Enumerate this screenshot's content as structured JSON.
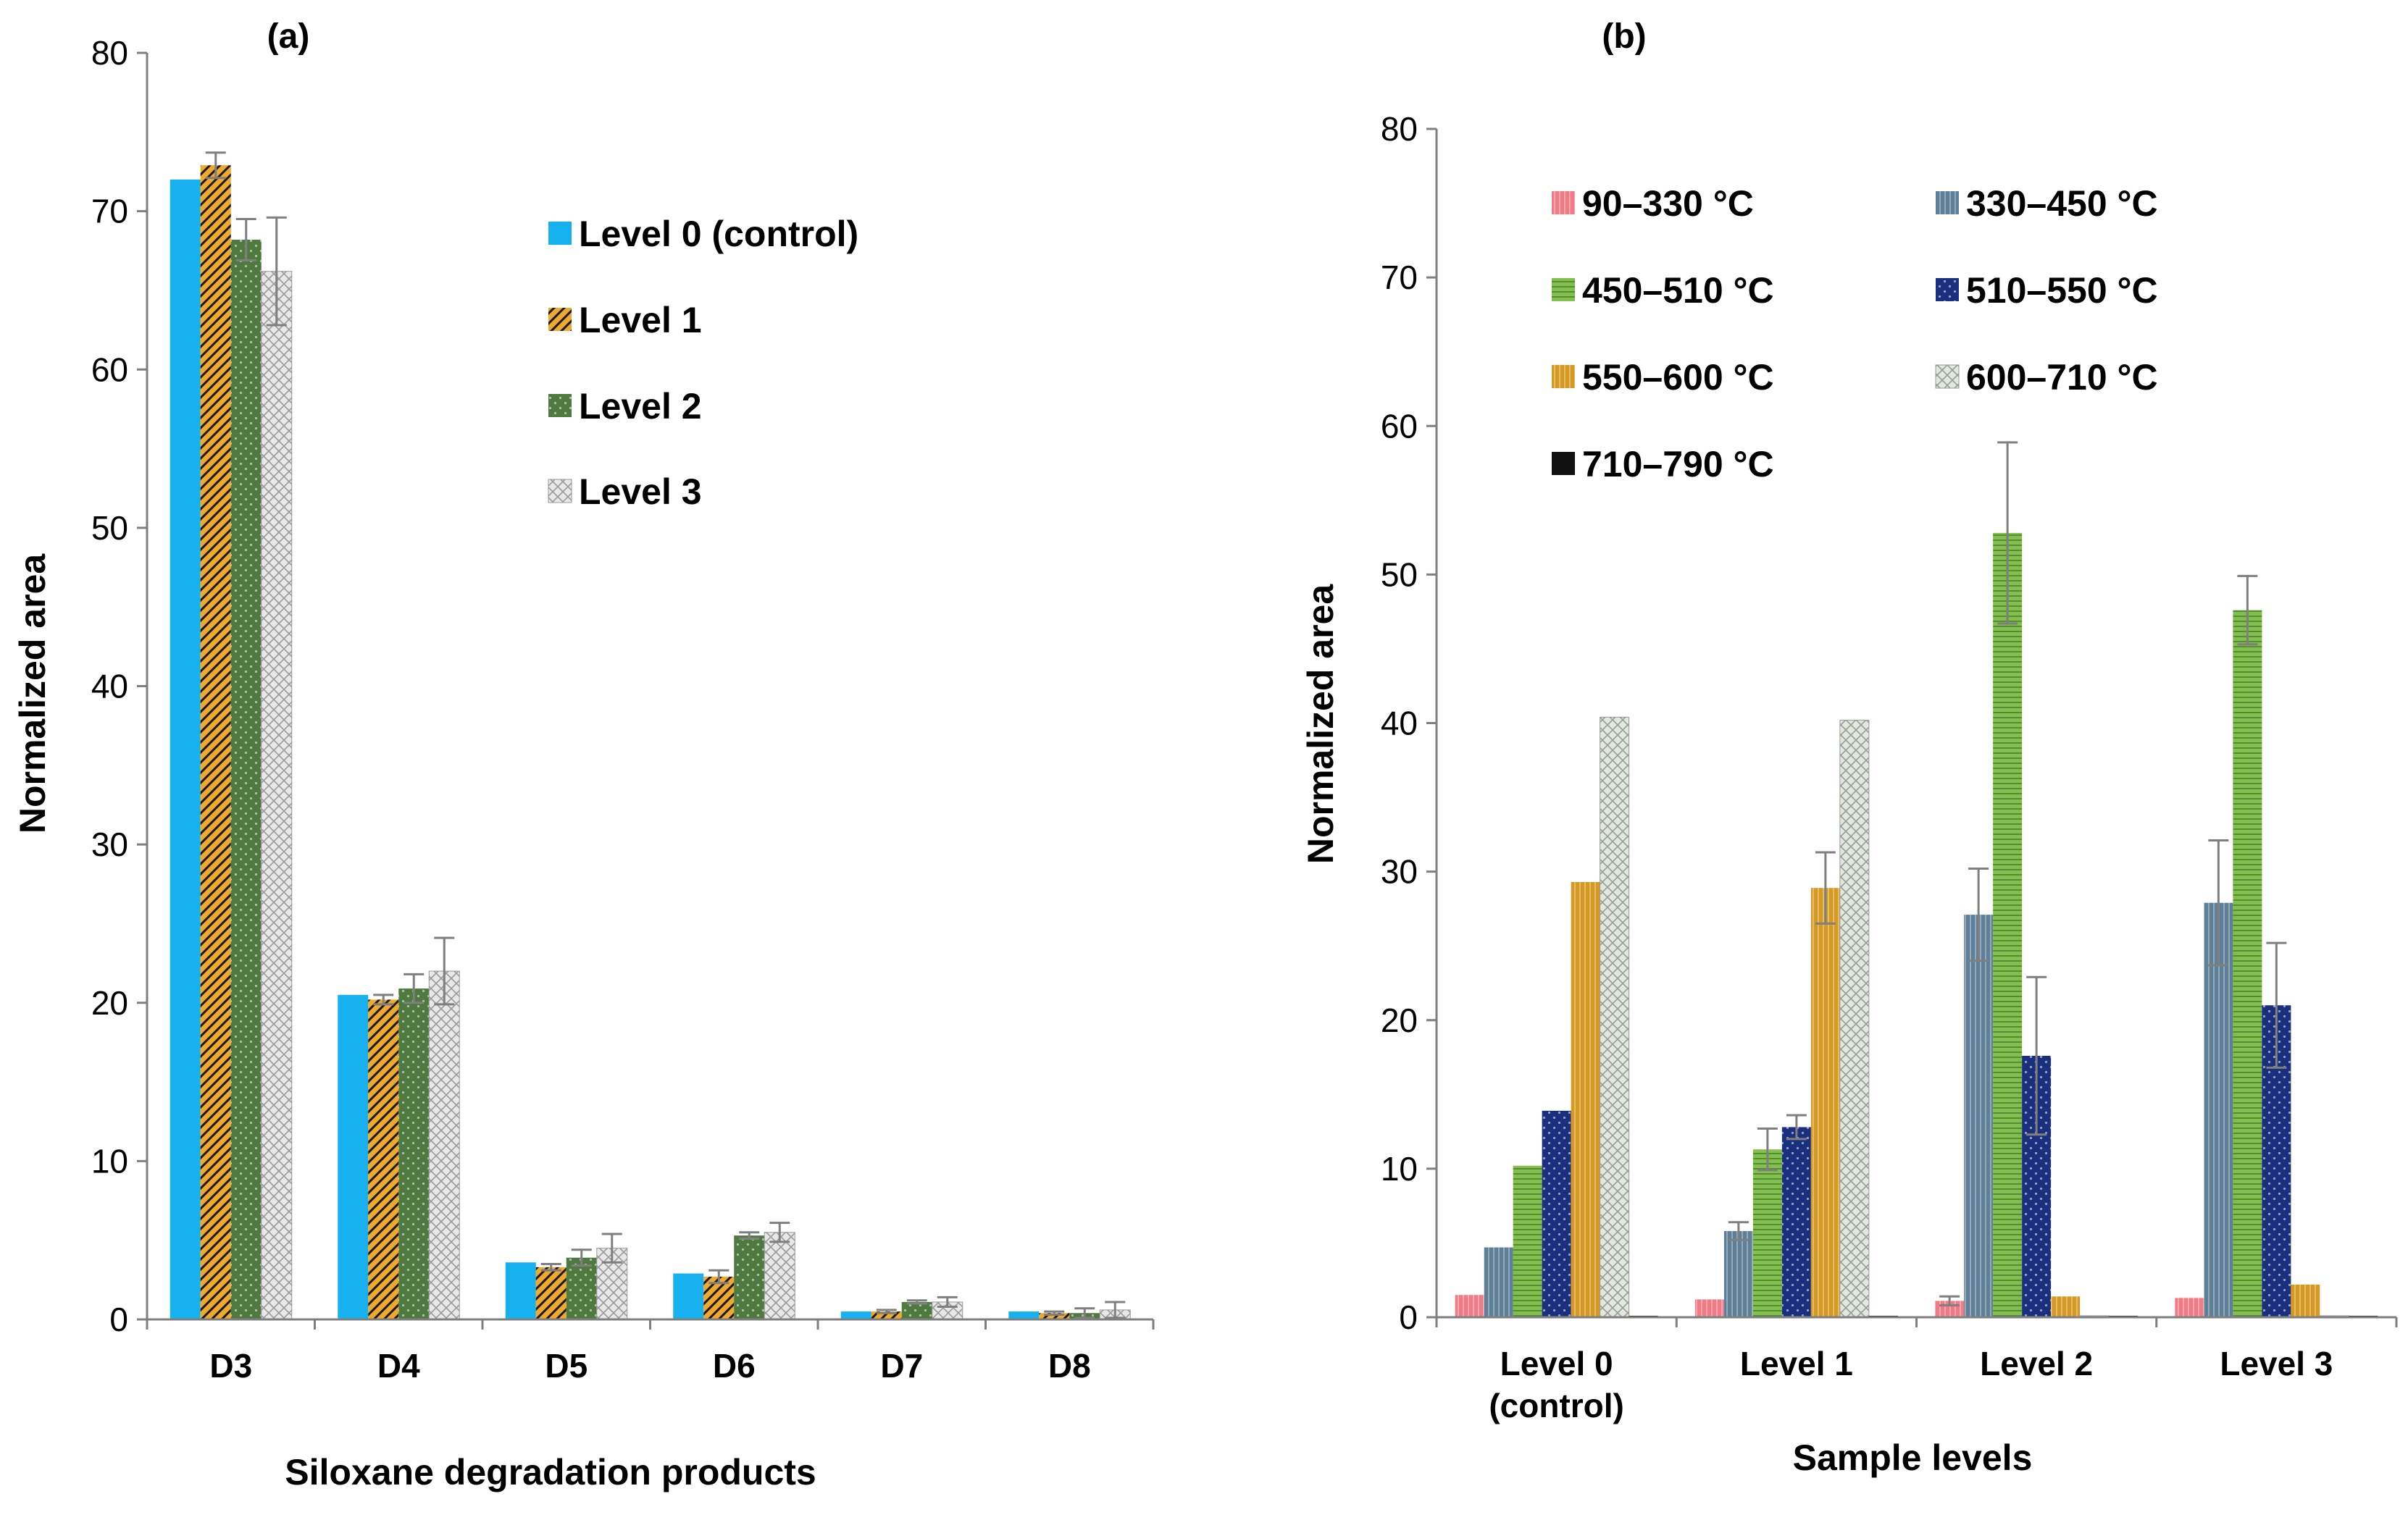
{
  "colors": {
    "level0": "#16b1ee",
    "level1": "#f0a92f",
    "level2": "#4f7a3f",
    "level3": "#e8e8e8",
    "t90_330": "#f07b84",
    "t330_450": "#5d7f98",
    "t450_510": "#82bf4c",
    "t510_550": "#1a2f7d",
    "t550_600": "#d69a22",
    "t600_710": "#dfe9dc",
    "t710_790": "#111111",
    "error": "#7f7f7f",
    "axis": "#7f7f7f"
  },
  "chart_data": [
    {
      "id": "a",
      "type": "bar",
      "panel_label": "(a)",
      "title": "",
      "xlabel": "Siloxane degradation products",
      "ylabel": "Normalized area",
      "ylim": [
        0,
        80
      ],
      "yticks": [
        "0",
        "10",
        "20",
        "30",
        "40",
        "50",
        "60",
        "70",
        "80"
      ],
      "grid": false,
      "legend_position": "top-right",
      "categories": [
        "D3",
        "D4",
        "D5",
        "D6",
        "D7",
        "D8"
      ],
      "series": [
        {
          "name": "Level 0 (control)",
          "color_key": "level0",
          "pattern": "solid",
          "values": [
            72.0,
            20.5,
            3.6,
            2.9,
            0.5,
            0.5
          ],
          "errors": [
            0,
            0,
            0,
            0,
            0,
            0
          ]
        },
        {
          "name": "Level 1",
          "color_key": "level1",
          "pattern": "diag",
          "values": [
            72.9,
            20.2,
            3.3,
            2.7,
            0.5,
            0.4
          ],
          "errors": [
            0.8,
            0.3,
            0.2,
            0.4,
            0.1,
            0.1
          ]
        },
        {
          "name": "Level 2",
          "color_key": "level2",
          "pattern": "dots",
          "values": [
            68.2,
            20.9,
            3.9,
            5.3,
            1.1,
            0.4
          ],
          "errors": [
            1.3,
            0.9,
            0.5,
            0.2,
            0.1,
            0.3
          ]
        },
        {
          "name": "Level 3",
          "color_key": "level3",
          "pattern": "cross",
          "values": [
            66.2,
            22.0,
            4.5,
            5.5,
            1.1,
            0.6
          ],
          "errors": [
            3.4,
            2.1,
            0.9,
            0.6,
            0.3,
            0.5
          ]
        }
      ]
    },
    {
      "id": "b",
      "type": "bar",
      "panel_label": "(b)",
      "title": "",
      "xlabel": "Sample levels",
      "ylabel": "Normalized area",
      "ylim": [
        0,
        80
      ],
      "yticks": [
        "0",
        "10",
        "20",
        "30",
        "40",
        "50",
        "60",
        "70",
        "80"
      ],
      "grid": false,
      "legend_position": "top-left",
      "categories": [
        [
          "Level 0",
          "(control)"
        ],
        [
          "Level 1"
        ],
        [
          "Level 2"
        ],
        [
          "Level 3"
        ]
      ],
      "series": [
        {
          "name": "90–330 °C",
          "color_key": "t90_330",
          "pattern": "lines",
          "values": [
            1.5,
            1.2,
            1.1,
            1.3
          ],
          "errors": [
            0,
            0,
            0.3,
            0
          ]
        },
        {
          "name": "330–450 °C",
          "color_key": "t330_450",
          "pattern": "lines",
          "values": [
            4.7,
            5.8,
            27.1,
            27.9
          ],
          "errors": [
            0,
            0.6,
            3.1,
            4.2
          ]
        },
        {
          "name": "450–510 °C",
          "color_key": "t450_510",
          "pattern": "hlines",
          "values": [
            10.2,
            11.3,
            52.8,
            47.6
          ],
          "errors": [
            0,
            1.4,
            6.1,
            2.3
          ]
        },
        {
          "name": "510–550 °C",
          "color_key": "t510_550",
          "pattern": "dots",
          "values": [
            13.9,
            12.8,
            17.6,
            21.0
          ],
          "errors": [
            0,
            0.8,
            5.3,
            4.2
          ]
        },
        {
          "name": "550–600 °C",
          "color_key": "t550_600",
          "pattern": "lines",
          "values": [
            29.3,
            28.9,
            1.4,
            2.2
          ],
          "errors": [
            0,
            2.4,
            0,
            0
          ]
        },
        {
          "name": "600–710 °C",
          "color_key": "t600_710",
          "pattern": "cross",
          "values": [
            40.4,
            40.2,
            0.1,
            0.1
          ],
          "errors": [
            0,
            0,
            0,
            0
          ]
        },
        {
          "name": "710–790 °C",
          "color_key": "t710_790",
          "pattern": "solid",
          "values": [
            0.1,
            0.1,
            0.1,
            0.1
          ],
          "errors": [
            0,
            0,
            0,
            0
          ]
        }
      ]
    }
  ]
}
